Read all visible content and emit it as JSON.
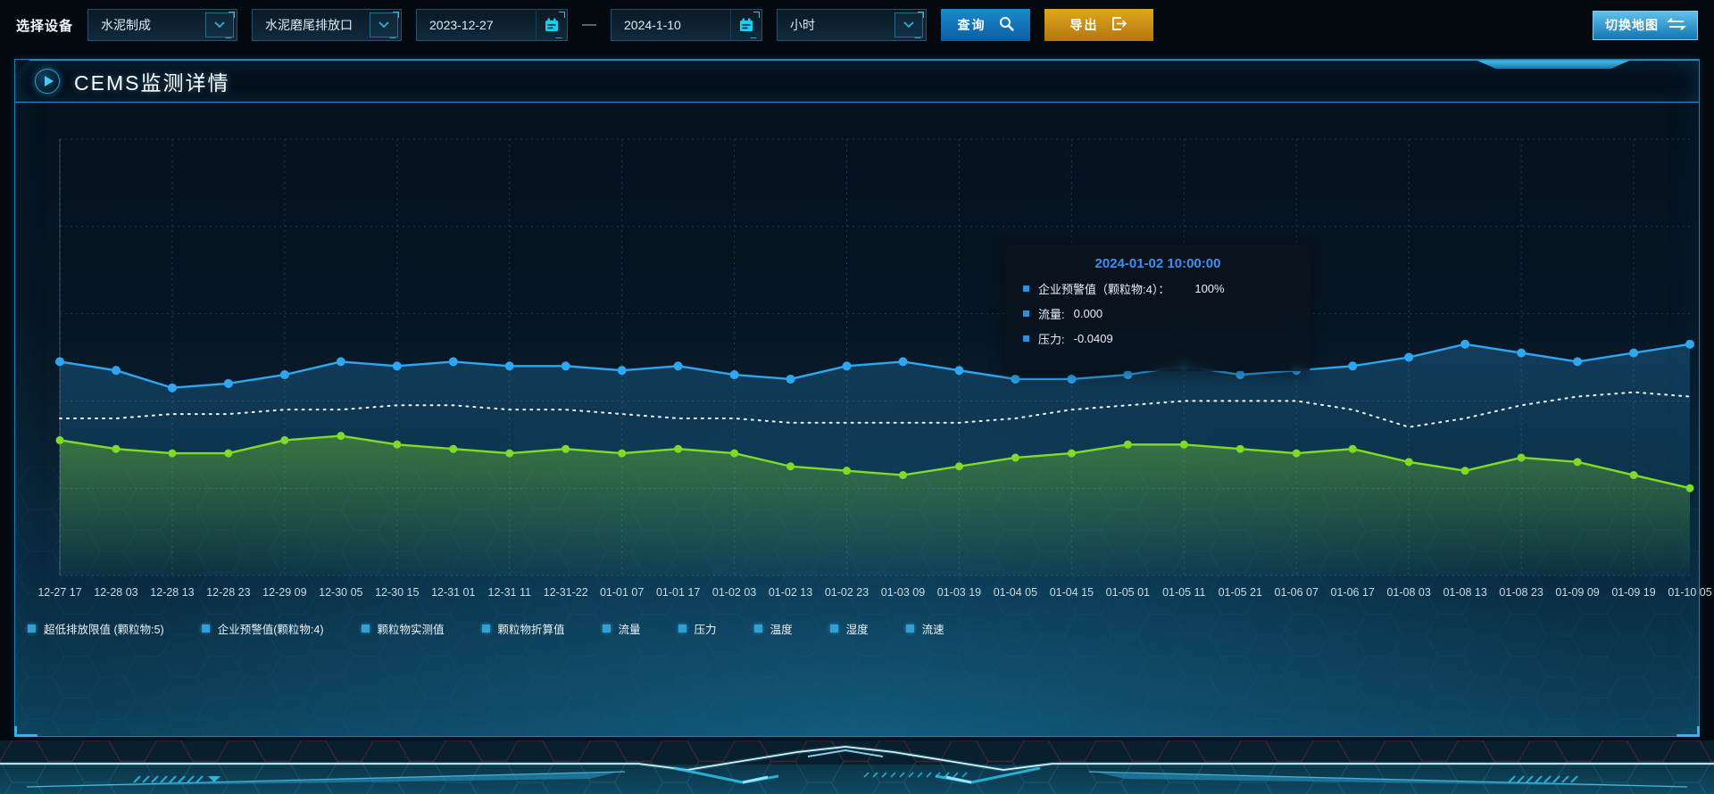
{
  "toolbar": {
    "device_label": "选择设备",
    "process_select": "水泥制成",
    "outlet_select": "水泥磨尾排放口",
    "date_start": "2023-12-27",
    "date_separator": "—",
    "date_end": "2024-1-10",
    "interval_select": "小时",
    "query_label": "查询",
    "export_label": "导出",
    "switch_map_label": "切换地图"
  },
  "panel": {
    "title": "CEMS监测详情"
  },
  "tooltip": {
    "title": "2024-01-02 10:00:00",
    "items": [
      {
        "label": "企业预警值（颗粒物:4）：",
        "value": "100%"
      },
      {
        "label": "流量:",
        "value": "0.000"
      },
      {
        "label": "压力:",
        "value": "-0.0409"
      }
    ]
  },
  "chart_data": {
    "type": "line",
    "title": "CEMS监测详情",
    "xlabel": "",
    "ylabel": "",
    "ylim": [
      0,
      100
    ],
    "grid": "dashed",
    "legend_position": "bottom",
    "categories": [
      "12-27 17",
      "12-28 03",
      "12-28 13",
      "12-28 23",
      "12-29 09",
      "12-30 05",
      "12-30 15",
      "12-31 01",
      "12-31 11",
      "12-31-22",
      "01-01 07",
      "01-01 17",
      "01-02 03",
      "01-02 13",
      "01-02 23",
      "01-03 09",
      "01-03 19",
      "01-04 05",
      "01-04 15",
      "01-05 01",
      "01-05 11",
      "01-05 21",
      "01-06 07",
      "01-06 17",
      "01-08 03",
      "01-08 13",
      "01-08 23",
      "01-09 09",
      "01-09 19",
      "01-10 05"
    ],
    "legend": [
      "超低排放限值 (颗粒物:5)",
      "企业预警值(颗粒物:4)",
      "颗粒物实测值",
      "颗粒物折算值",
      "流量",
      "压力",
      "温度",
      "湿度",
      "流速"
    ],
    "series": [
      {
        "name": "企业预警值(颗粒物:4)",
        "color": "#2fa6f2",
        "style": "solid",
        "markers": true,
        "area": true,
        "values": [
          49,
          47,
          43,
          44,
          46,
          49,
          48,
          49,
          48,
          48,
          47,
          48,
          46,
          45,
          48,
          49,
          47,
          45,
          45,
          46,
          48,
          46,
          47,
          48,
          50,
          53,
          51,
          49,
          51,
          53
        ]
      },
      {
        "name": "压力",
        "color": "#eef6f8",
        "style": "dotted",
        "markers": false,
        "area": false,
        "values": [
          36,
          36,
          37,
          37,
          38,
          38,
          39,
          39,
          38,
          38,
          37,
          36,
          36,
          35,
          35,
          35,
          35,
          36,
          38,
          39,
          40,
          40,
          40,
          38,
          34,
          36,
          39,
          41,
          42,
          41
        ]
      },
      {
        "name": "流量",
        "color": "#7edc28",
        "style": "solid",
        "markers": true,
        "area": true,
        "values": [
          31,
          29,
          28,
          28,
          31,
          32,
          30,
          29,
          28,
          29,
          28,
          29,
          28,
          25,
          24,
          23,
          25,
          27,
          28,
          30,
          30,
          29,
          28,
          29,
          26,
          24,
          27,
          26,
          23,
          20
        ]
      }
    ]
  }
}
